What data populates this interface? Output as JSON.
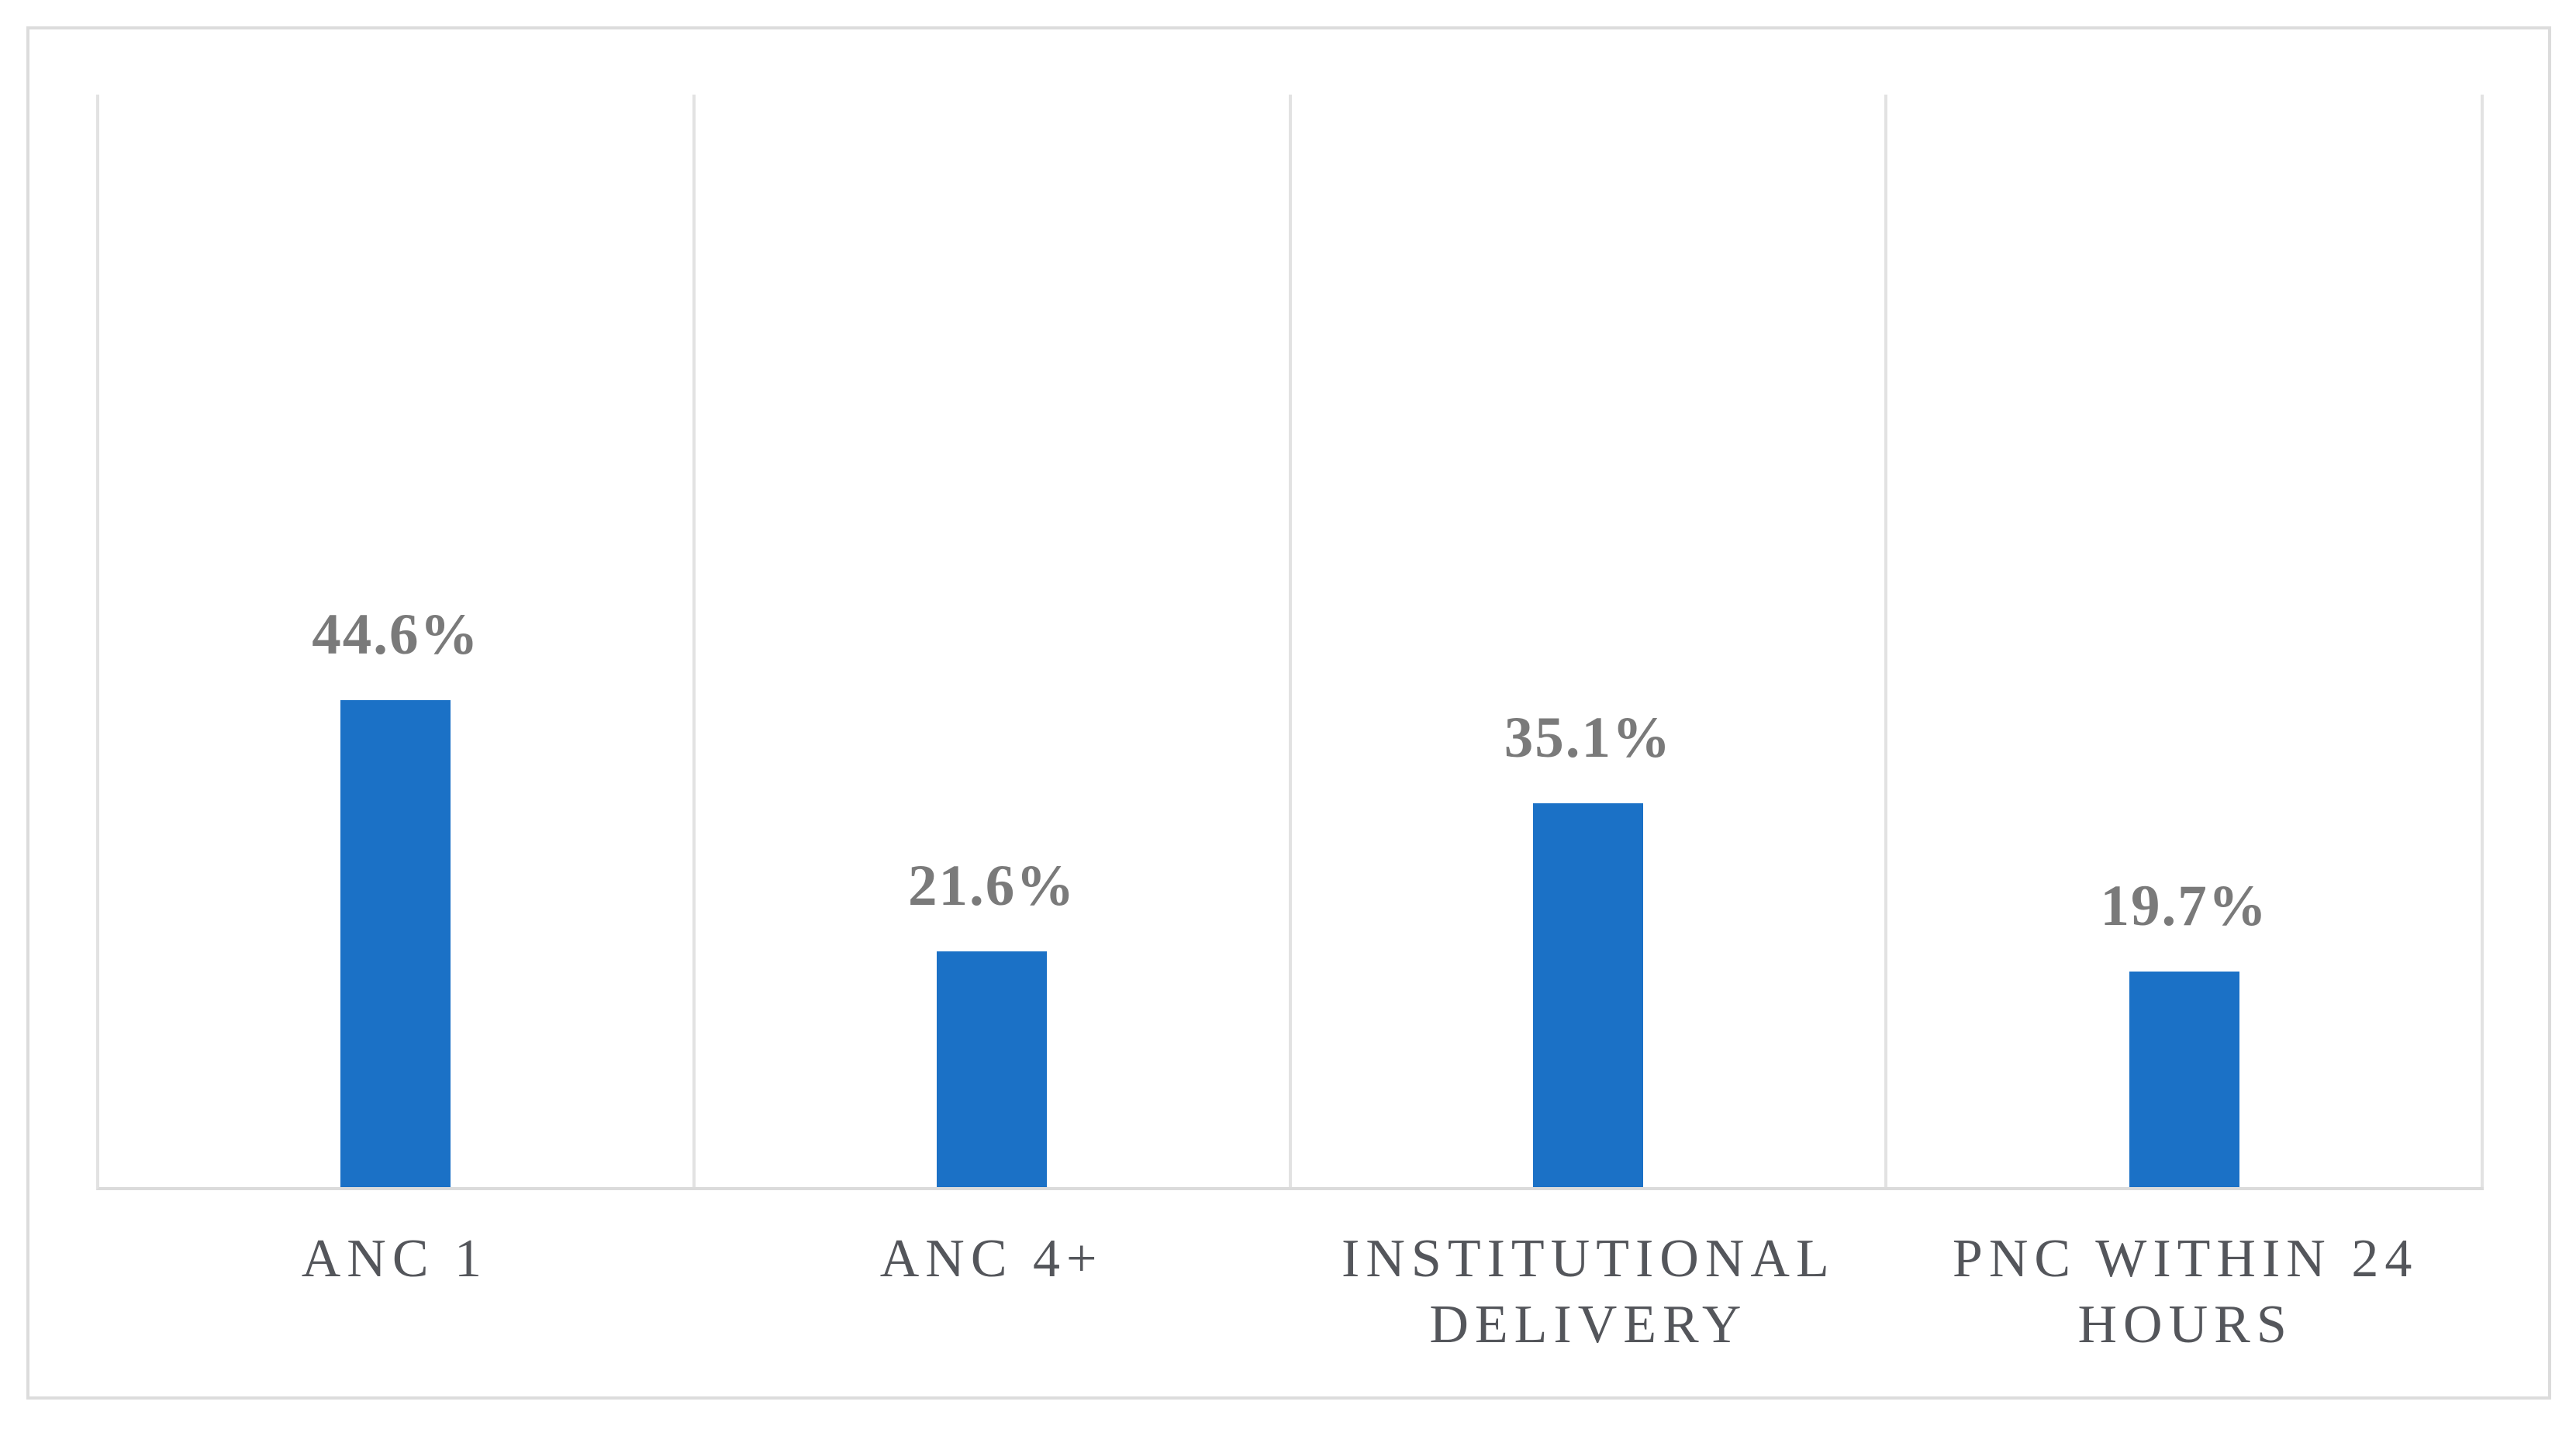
{
  "figure": {
    "background": "#FFFFFF",
    "frame_border_color": "#DCDCDC"
  },
  "chart_data": {
    "type": "bar",
    "title": "",
    "xlabel": "",
    "ylabel": "",
    "categories": [
      "ANC 1",
      "ANC 4+",
      "INSTITUTIONAL DELIVERY",
      "PNC WITHIN 24 HOURS"
    ],
    "values": [
      44.6,
      21.6,
      35.1,
      19.7
    ],
    "value_labels": [
      "44.6%",
      "21.6%",
      "35.1%",
      "19.7%"
    ],
    "ylim": [
      0,
      100
    ],
    "y_axis_labels_visible": false,
    "legend_position": "none",
    "gridlines": "vertical-category-separators",
    "bar_color": "#1B71C6",
    "value_label_color": "#7A7A7A",
    "category_label_color": "#54565B",
    "gridline_color": "#E2E2E2",
    "axis_line_color": "#DBDBDB"
  }
}
